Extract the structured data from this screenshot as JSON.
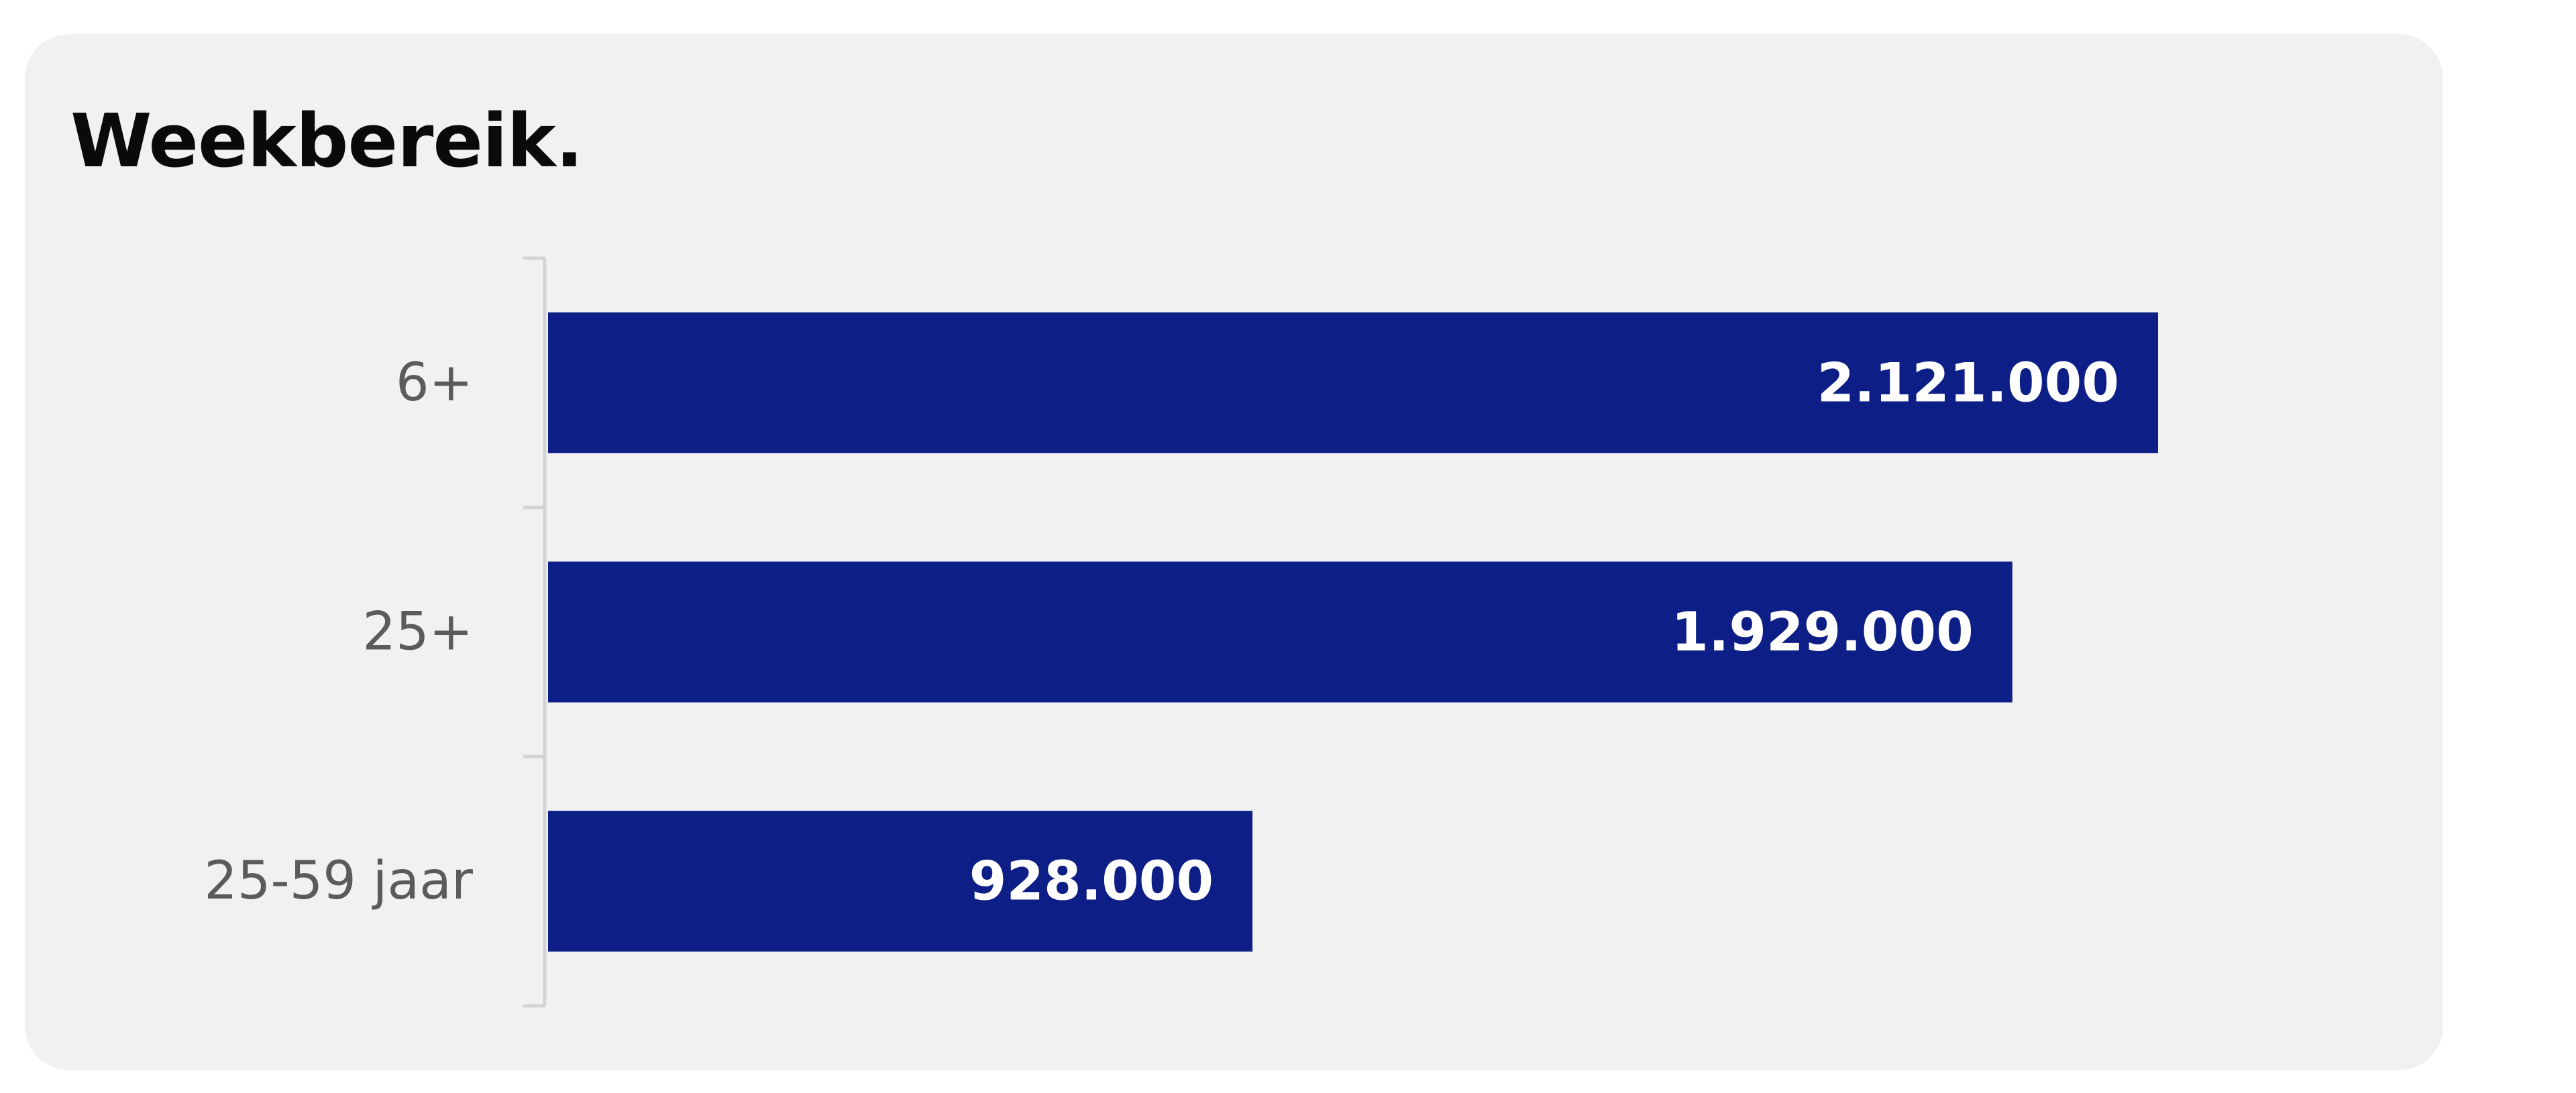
{
  "chart_data": {
    "type": "bar",
    "orientation": "horizontal",
    "title": "Weekbereik.",
    "categories": [
      "6+",
      "25+",
      "25-59 jaar"
    ],
    "values": [
      2121000,
      1929000,
      928000
    ],
    "value_labels": [
      "2.121.000",
      "1.929.000",
      "928.000"
    ],
    "xlim": [
      0,
      2121000
    ],
    "bar_color": "#0d1e87",
    "background_color": "#f1f1f2",
    "label_color": "#5b5b5b",
    "grid": false,
    "legend": "none"
  }
}
